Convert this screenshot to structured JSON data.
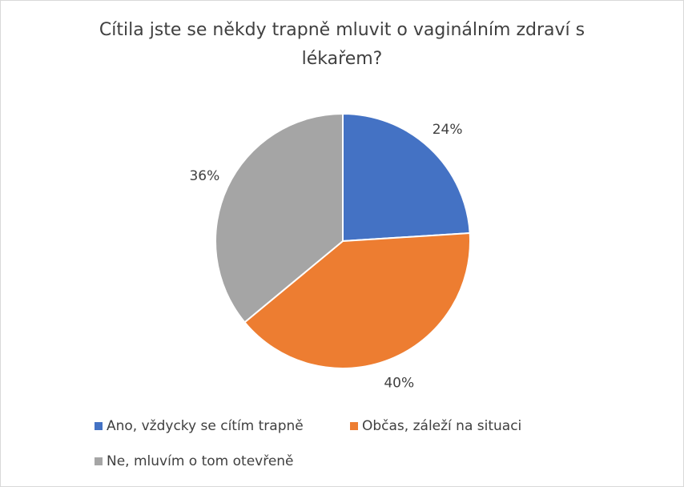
{
  "chart_data": {
    "type": "pie",
    "title": "Cítila jste se někdy trapně mluvit o vaginálním zdraví s lékařem?",
    "categories": [
      "Ano, vždycky se cítím trapně",
      "Občas, záleží na situaci",
      "Ne, mluvím o tom otevřeně"
    ],
    "values": [
      24,
      40,
      36
    ],
    "value_labels": [
      "24%",
      "40%",
      "36%"
    ],
    "colors": [
      "#4472c4",
      "#ed7d31",
      "#a5a5a5"
    ]
  }
}
